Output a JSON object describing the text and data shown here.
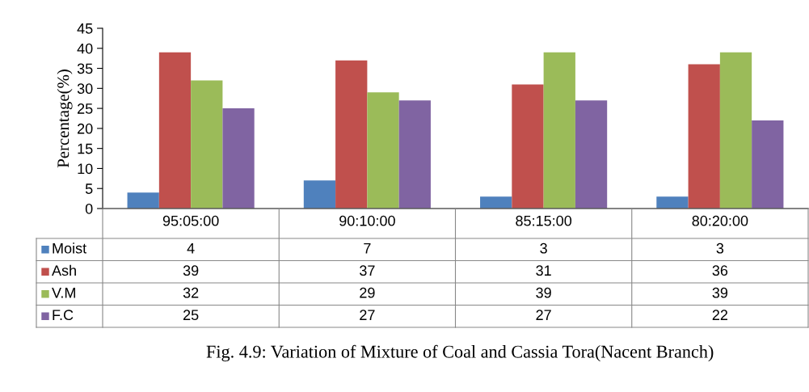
{
  "chart_data": {
    "type": "bar",
    "ylabel": "Percentage(%)",
    "categories": [
      "95:05:00",
      "90:10:00",
      "85:15:00",
      "80:20:00"
    ],
    "series": [
      {
        "name": "Moist",
        "color": "#4f81bd",
        "values": [
          4,
          7,
          3,
          3
        ]
      },
      {
        "name": "Ash",
        "color": "#c0504d",
        "values": [
          39,
          37,
          31,
          36
        ]
      },
      {
        "name": "V.M",
        "color": "#9bbb59",
        "values": [
          32,
          29,
          39,
          39
        ]
      },
      {
        "name": "F.C",
        "color": "#8064a2",
        "values": [
          25,
          27,
          27,
          22
        ]
      }
    ],
    "ylim": [
      0,
      45
    ],
    "yticks": [
      0,
      5,
      10,
      15,
      20,
      25,
      30,
      35,
      40,
      45
    ],
    "grid": false,
    "legend": "bottom left",
    "data_labels": true,
    "annotations": [
      "Fig. 4.9: Variation of Mixture of Coal and Cassia Tora(Nacent Branch)"
    ]
  }
}
